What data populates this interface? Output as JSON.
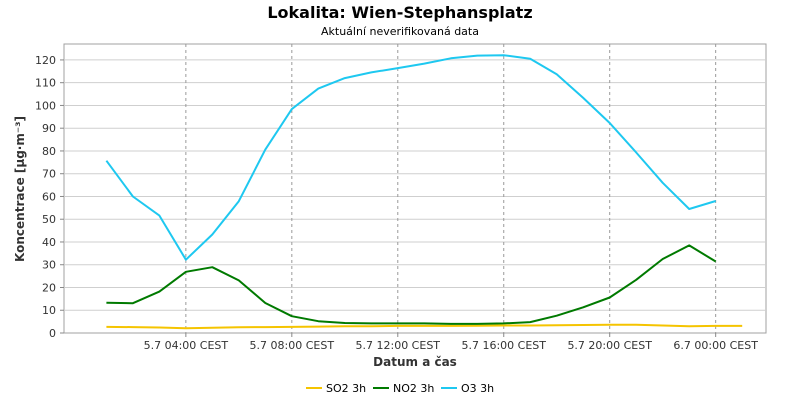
{
  "chart_data": {
    "type": "line",
    "title": "Lokalita: Wien-Stephansplatz",
    "subtitle": "Aktuální neverifikovaná data",
    "xlabel": "Datum a čas",
    "ylabel": "Koncentrace [µg·m⁻³]",
    "ylim": [
      0,
      127
    ],
    "yticks": [
      0,
      10,
      20,
      30,
      40,
      50,
      60,
      70,
      80,
      90,
      100,
      110,
      120
    ],
    "xlim_hours": [
      -1.6,
      24.9
    ],
    "x_hours": [
      0,
      1,
      2,
      3,
      4,
      5,
      6,
      7,
      8,
      9,
      10,
      11,
      12,
      13,
      14,
      15,
      16,
      17,
      18,
      19,
      20,
      21,
      22,
      23,
      24
    ],
    "xticks": [
      {
        "hour": 3,
        "label": "5.7 04:00 CEST"
      },
      {
        "hour": 7,
        "label": "5.7 08:00 CEST"
      },
      {
        "hour": 11,
        "label": "5.7 12:00 CEST"
      },
      {
        "hour": 15,
        "label": "5.7 16:00 CEST"
      },
      {
        "hour": 19,
        "label": "5.7 20:00 CEST"
      },
      {
        "hour": 23,
        "label": "6.7 00:00 CEST"
      }
    ],
    "grid": true,
    "legend": "bottom",
    "series": [
      {
        "name": "SO2 3h",
        "color": "#f5c400",
        "values": [
          2.7,
          2.6,
          2.4,
          2.1,
          2.3,
          2.5,
          2.6,
          2.7,
          2.8,
          3.0,
          3.0,
          3.1,
          3.1,
          3.1,
          3.2,
          3.3,
          3.3,
          3.4,
          3.5,
          3.6,
          3.6,
          3.3,
          3.0,
          3.1,
          3.1
        ]
      },
      {
        "name": "NO2 3h",
        "color": "#007a00",
        "values": [
          13.3,
          13.1,
          18.2,
          26.9,
          28.9,
          23.1,
          13.2,
          7.4,
          5.2,
          4.4,
          4.2,
          4.2,
          4.2,
          4.0,
          4.0,
          4.2,
          4.8,
          7.6,
          11.3,
          15.6,
          23.4,
          32.5,
          38.5,
          31.4,
          null
        ]
      },
      {
        "name": "O3 3h",
        "color": "#1ec8f0",
        "values": [
          75.7,
          60.0,
          51.6,
          32.2,
          43.3,
          57.9,
          80.6,
          98.4,
          107.4,
          112.0,
          114.5,
          116.4,
          118.4,
          120.7,
          121.9,
          122.1,
          120.5,
          113.7,
          103.3,
          92.3,
          79.3,
          66.0,
          54.5,
          58.0,
          null
        ]
      }
    ]
  }
}
